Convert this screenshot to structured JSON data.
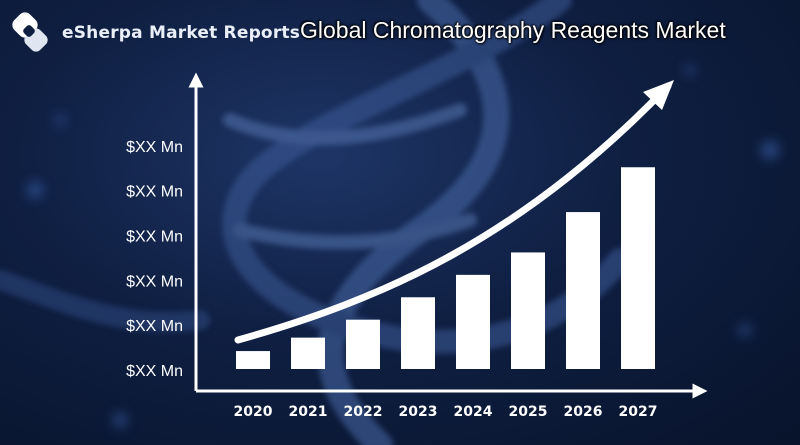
{
  "brand": {
    "name": "eSherpa Market Reports",
    "logo_icon": "esherpa-logo-icon"
  },
  "title": "Global Chromatography Reagents Market",
  "colors": {
    "background": "#0f1f42",
    "bars": "#ffffff",
    "axis": "#ffffff",
    "text": "#ffffff"
  },
  "chart_data": {
    "type": "bar",
    "title": "Global Chromatography Reagents Market",
    "xlabel": "",
    "ylabel": "",
    "categories": [
      "2020",
      "2021",
      "2022",
      "2023",
      "2024",
      "2025",
      "2026",
      "2027"
    ],
    "values": [
      4,
      7,
      11,
      16,
      21,
      26,
      35,
      45
    ],
    "ylim": [
      0,
      60
    ],
    "ytick_values": [
      0,
      10,
      20,
      30,
      40,
      50
    ],
    "ytick_labels": [
      "$XX Mn",
      "$XX Mn",
      "$XX Mn",
      "$XX Mn",
      "$XX Mn",
      "$XX Mn"
    ],
    "grid": false,
    "trend_arrow": true
  }
}
